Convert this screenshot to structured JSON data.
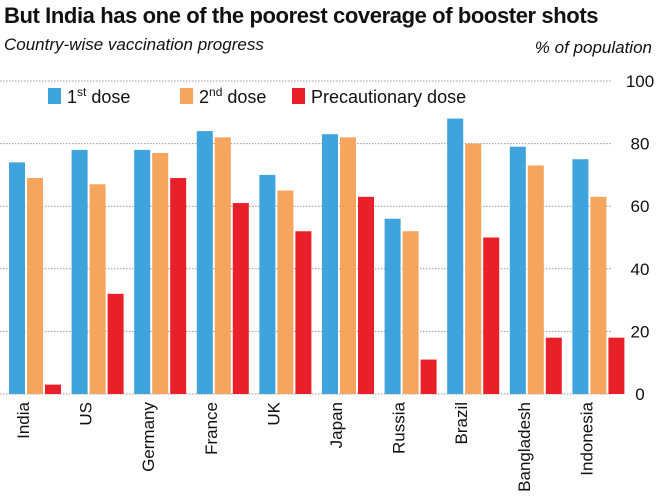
{
  "header": {
    "title": "But India has one of the poorest coverage of booster shots",
    "subtitle": "Country-wise vaccination progress",
    "unit": "% of population"
  },
  "colors": {
    "first_dose": "#3fa3dc",
    "second_dose": "#f5a55d",
    "precautionary_dose": "#e8202a",
    "grid": "#9a9a9a"
  },
  "chart_data": {
    "type": "bar",
    "title": "But India has one of the poorest coverage of booster shots",
    "subtitle": "Country-wise vaccination progress",
    "xlabel": "",
    "ylabel": "% of population",
    "ylim": [
      0,
      100
    ],
    "yticks": [
      0,
      20,
      40,
      60,
      80,
      100
    ],
    "grid": true,
    "legend_position": "top-left",
    "categories": [
      "India",
      "US",
      "Germany",
      "France",
      "UK",
      "Japan",
      "Russia",
      "Brazil",
      "Bangladesh",
      "Indonesia"
    ],
    "series": [
      {
        "name": "1st dose",
        "legend_base": "1",
        "legend_sup": "st",
        "legend_rest": " dose",
        "color": "#3fa3dc",
        "values": [
          74,
          78,
          78,
          84,
          70,
          83,
          56,
          88,
          79,
          75
        ]
      },
      {
        "name": "2nd dose",
        "legend_base": "2",
        "legend_sup": "nd",
        "legend_rest": " dose",
        "color": "#f5a55d",
        "values": [
          69,
          67,
          77,
          82,
          65,
          82,
          52,
          80,
          73,
          63
        ]
      },
      {
        "name": "Precautionary dose",
        "legend_base": "Precautionary dose",
        "legend_sup": "",
        "legend_rest": "",
        "color": "#e8202a",
        "values": [
          3,
          32,
          69,
          61,
          52,
          63,
          11,
          50,
          18,
          18
        ]
      }
    ]
  }
}
